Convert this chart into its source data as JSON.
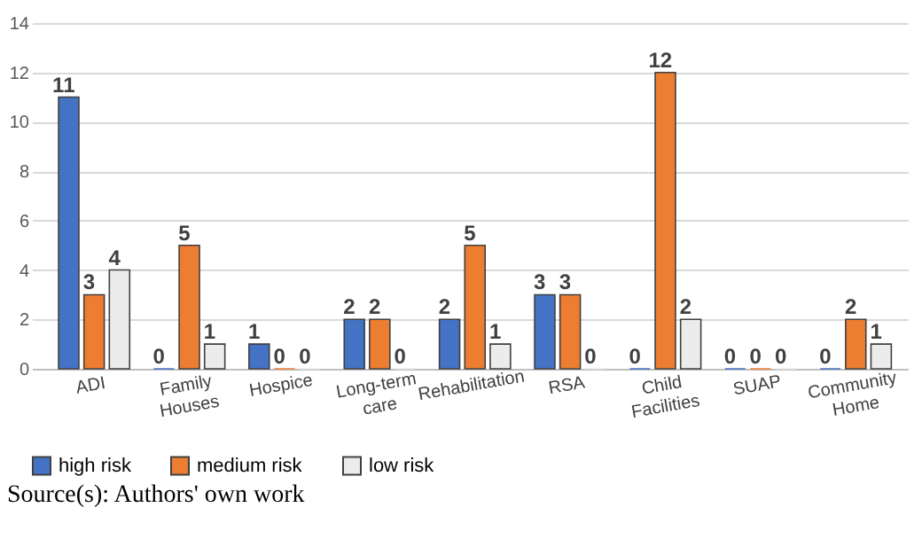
{
  "chart_data": {
    "type": "bar",
    "categories": [
      "ADI",
      "Family Houses",
      "Hospice",
      "Long-term care",
      "Rehabilitation",
      "RSA",
      "Child Facilities",
      "SUAP",
      "Community Home"
    ],
    "series": [
      {
        "name": "high risk",
        "color": "#4472c4",
        "values": [
          11,
          0,
          1,
          2,
          2,
          3,
          0,
          0,
          0
        ]
      },
      {
        "name": "medium risk",
        "color": "#ed7d31",
        "values": [
          3,
          5,
          0,
          2,
          5,
          3,
          12,
          0,
          2
        ]
      },
      {
        "name": "low risk",
        "color": "#ececec",
        "values": [
          4,
          1,
          0,
          0,
          1,
          0,
          2,
          0,
          1
        ]
      }
    ],
    "ylim": [
      0,
      14
    ],
    "yticks": [
      0,
      2,
      4,
      6,
      8,
      10,
      12,
      14
    ],
    "grid": "y",
    "legend": "bottom",
    "data_labels": true,
    "annotations": [
      "Source(s): Authors' own work"
    ]
  }
}
